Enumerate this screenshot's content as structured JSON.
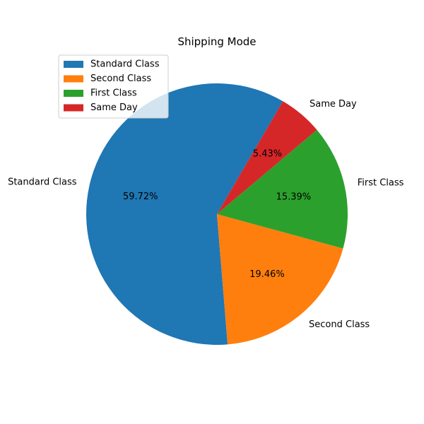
{
  "chart_data": {
    "type": "pie",
    "title": "Shipping Mode",
    "categories": [
      "Standard Class",
      "Second Class",
      "First Class",
      "Same Day"
    ],
    "values": [
      59.72,
      19.46,
      15.39,
      5.43
    ],
    "value_labels": [
      "59.72%",
      "19.46%",
      "15.39%",
      "5.43%"
    ],
    "colors": [
      "#1f77b4",
      "#ff7f0e",
      "#2ca02c",
      "#d62728"
    ],
    "legend": {
      "placement": "upper-left",
      "entries": [
        "Standard Class",
        "Second Class",
        "First Class",
        "Same Day"
      ]
    }
  }
}
